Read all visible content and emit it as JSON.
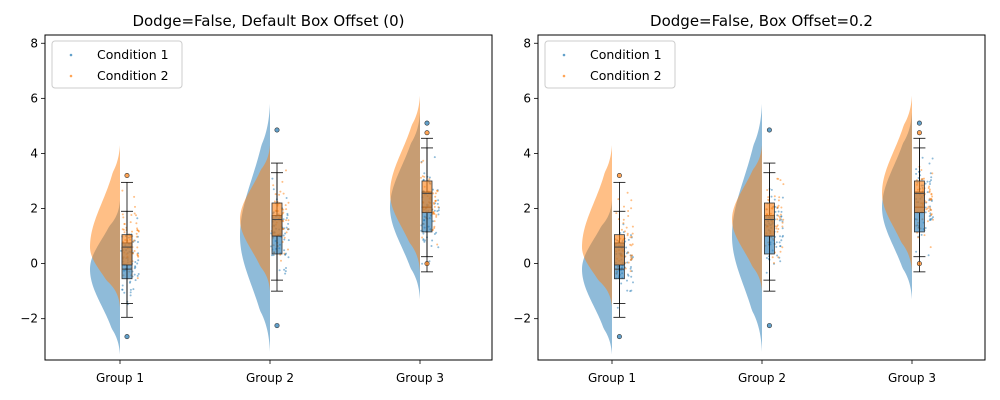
{
  "chart_data": [
    {
      "type": "raincloud",
      "title": "Dodge=False, Default Box Offset (0)",
      "categories": [
        "Group 1",
        "Group 2",
        "Group 3"
      ],
      "ylim": [
        -3.5,
        8.3
      ],
      "yticks": [
        -2,
        0,
        2,
        4,
        6,
        8
      ],
      "legend": {
        "placement": "top-left",
        "entries": [
          "Condition 1",
          "Condition 2"
        ]
      },
      "box_offset": 0,
      "series": [
        {
          "name": "Condition 1",
          "color": "#1f77b4",
          "groups": [
            {
              "min": -3.3,
              "max": 2.3,
              "median": -0.2,
              "q1": -0.55,
              "q3": 0.75,
              "whisker_low": -1.95,
              "whisker_high": 1.9,
              "outliers": [
                -2.65
              ]
            },
            {
              "min": -3.2,
              "max": 5.8,
              "median": 1.0,
              "q1": 0.35,
              "q3": 1.75,
              "whisker_low": -1.0,
              "whisker_high": 3.3,
              "outliers": [
                -2.25,
                4.85
              ]
            },
            {
              "min": -1.3,
              "max": 5.5,
              "median": 2.05,
              "q1": 1.15,
              "q3": 2.6,
              "whisker_low": -0.3,
              "whisker_high": 4.55,
              "outliers": [
                5.1
              ]
            }
          ]
        },
        {
          "name": "Condition 2",
          "color": "#ff7f0e",
          "groups": [
            {
              "min": -1.6,
              "max": 4.3,
              "median": 0.6,
              "q1": -0.05,
              "q3": 1.05,
              "whisker_low": -1.45,
              "whisker_high": 2.95,
              "outliers": [
                3.2
              ]
            },
            {
              "min": -1.0,
              "max": 4.3,
              "median": 1.6,
              "q1": 1.0,
              "q3": 2.2,
              "whisker_low": -0.6,
              "whisker_high": 3.65,
              "outliers": []
            },
            {
              "min": -0.3,
              "max": 6.1,
              "median": 2.55,
              "q1": 1.85,
              "q3": 3.0,
              "whisker_low": 0.25,
              "whisker_high": 4.2,
              "outliers": [
                4.75,
                0.0
              ]
            }
          ]
        }
      ]
    },
    {
      "type": "raincloud",
      "title": "Dodge=False, Box Offset=0.2",
      "categories": [
        "Group 1",
        "Group 2",
        "Group 3"
      ],
      "ylim": [
        -3.5,
        8.3
      ],
      "yticks": [
        -2,
        0,
        2,
        4,
        6,
        8
      ],
      "legend": {
        "placement": "top-left",
        "entries": [
          "Condition 1",
          "Condition 2"
        ]
      },
      "box_offset": 0.2,
      "series": [
        {
          "name": "Condition 1",
          "color": "#1f77b4",
          "groups": [
            {
              "min": -3.3,
              "max": 2.3,
              "median": -0.2,
              "q1": -0.55,
              "q3": 0.75,
              "whisker_low": -1.95,
              "whisker_high": 1.9,
              "outliers": [
                -2.65
              ]
            },
            {
              "min": -3.2,
              "max": 5.8,
              "median": 1.0,
              "q1": 0.35,
              "q3": 1.75,
              "whisker_low": -1.0,
              "whisker_high": 3.3,
              "outliers": [
                -2.25,
                4.85
              ]
            },
            {
              "min": -1.3,
              "max": 5.5,
              "median": 2.05,
              "q1": 1.15,
              "q3": 2.6,
              "whisker_low": -0.3,
              "whisker_high": 4.55,
              "outliers": [
                5.1
              ]
            }
          ]
        },
        {
          "name": "Condition 2",
          "color": "#ff7f0e",
          "groups": [
            {
              "min": -1.6,
              "max": 4.3,
              "median": 0.6,
              "q1": -0.05,
              "q3": 1.05,
              "whisker_low": -1.45,
              "whisker_high": 2.95,
              "outliers": [
                3.2
              ]
            },
            {
              "min": -1.0,
              "max": 4.3,
              "median": 1.6,
              "q1": 1.0,
              "q3": 2.2,
              "whisker_low": -0.6,
              "whisker_high": 3.65,
              "outliers": []
            },
            {
              "min": -0.3,
              "max": 6.1,
              "median": 2.55,
              "q1": 1.85,
              "q3": 3.0,
              "whisker_low": 0.25,
              "whisker_high": 4.2,
              "outliers": [
                4.75,
                0.0
              ]
            }
          ]
        }
      ]
    }
  ]
}
